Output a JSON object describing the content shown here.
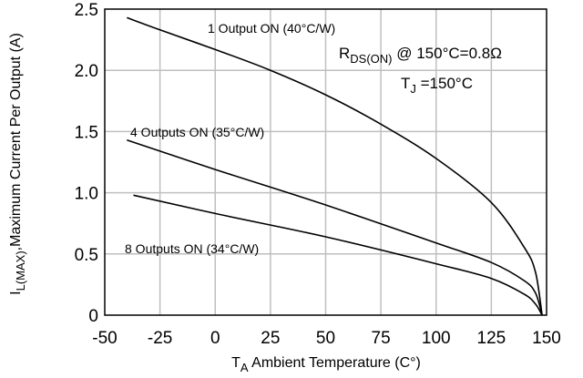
{
  "chart_data": {
    "type": "line",
    "title": "",
    "xlabel_main": "T",
    "xlabel_sub": "A",
    "xlabel_rest": " Ambient Temperature (C°)",
    "ylabel_main": "I",
    "ylabel_sub": "L(MAX)",
    "ylabel_rest": ",Maximum Current Per Output (A)",
    "xlim": [
      -50,
      150
    ],
    "ylim": [
      0,
      2.5
    ],
    "x_ticks": [
      "-50",
      "-25",
      "0",
      "25",
      "50",
      "75",
      "100",
      "125",
      "150"
    ],
    "y_ticks": [
      "0",
      "0.5",
      "1.0",
      "1.5",
      "2.0",
      "2.5"
    ],
    "grid": true,
    "series": [
      {
        "name": "1 Output ON (40°C/W)",
        "x": [
          -40,
          -25,
          0,
          25,
          50,
          75,
          100,
          125,
          140,
          145,
          148
        ],
        "y": [
          2.43,
          2.33,
          2.17,
          2.0,
          1.8,
          1.56,
          1.28,
          0.92,
          0.55,
          0.35,
          0.0
        ]
      },
      {
        "name": "4 Outputs ON (35°C/W)",
        "x": [
          -40,
          0,
          50,
          100,
          125,
          140,
          145,
          148
        ],
        "y": [
          1.43,
          1.19,
          0.9,
          0.59,
          0.43,
          0.28,
          0.18,
          0.0
        ]
      },
      {
        "name": "8 Outputs ON (34°C/W)",
        "x": [
          -37,
          0,
          50,
          100,
          125,
          140,
          145,
          148
        ],
        "y": [
          0.98,
          0.83,
          0.64,
          0.42,
          0.3,
          0.17,
          0.09,
          0.0
        ]
      }
    ],
    "annotations": {
      "rds_main": "R",
      "rds_sub": "DS(ON)",
      "rds_rest": " @ 150°C=0.8Ω",
      "tj_main": "T",
      "tj_sub": "J",
      "tj_rest": " =150°C"
    }
  },
  "colors": {
    "line": "#000000",
    "grid": "#bfbfbf",
    "frame": "#000000"
  }
}
